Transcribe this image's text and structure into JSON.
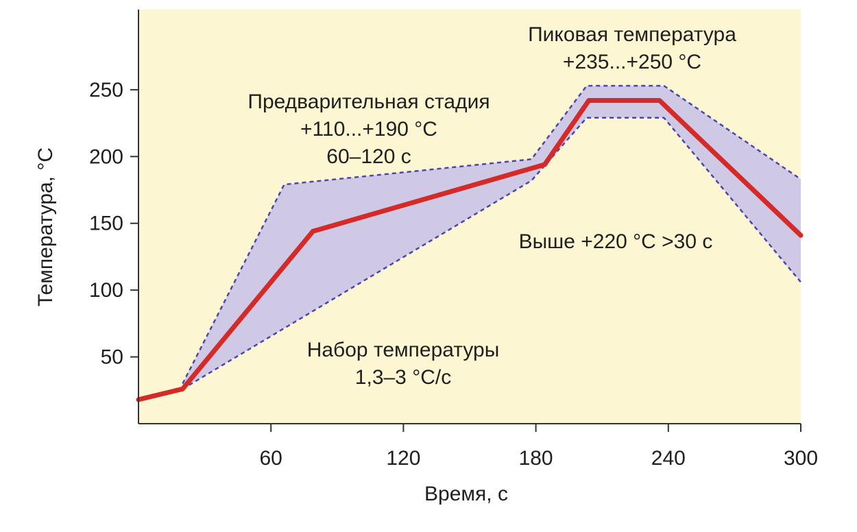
{
  "chart_data": {
    "type": "area",
    "title": "",
    "xlabel": "Время, с",
    "ylabel": "Температура, °С",
    "xlim": [
      0,
      300
    ],
    "ylim": [
      0,
      310
    ],
    "x_ticks": [
      60,
      120,
      180,
      240,
      300
    ],
    "y_ticks": [
      50,
      100,
      150,
      200,
      250
    ],
    "grid": false,
    "colors": {
      "plot_background": "#fdf6d2",
      "band_fill": "#cfc9e6",
      "band_edge": "#4a46b0",
      "profile_line": "#d42a28",
      "axis": "#333333"
    },
    "series": [
      {
        "role": "profile",
        "x": [
          0,
          20,
          79,
          184,
          204,
          236,
          300
        ],
        "y": [
          18,
          26,
          144,
          194,
          242,
          242,
          141
        ]
      },
      {
        "role": "upper_bound",
        "x": [
          20,
          66,
          178,
          203,
          238,
          300
        ],
        "y": [
          30,
          179,
          198,
          253,
          253,
          183
        ]
      },
      {
        "role": "lower_bound",
        "x": [
          20,
          178,
          203,
          238,
          300
        ],
        "y": [
          26,
          182,
          229,
          229,
          106
        ]
      }
    ],
    "annotations": [
      {
        "id": "peak",
        "lines": [
          "Пиковая температура",
          "+235...+250 °С"
        ]
      },
      {
        "id": "preheat",
        "lines": [
          "Предварительная стадия",
          "+110...+190 °С",
          "60–120 с"
        ]
      },
      {
        "id": "above",
        "lines": [
          "Выше +220 °С >30 с"
        ]
      },
      {
        "id": "ramp",
        "lines": [
          "Набор температуры",
          "1,3–3 °С/с"
        ]
      }
    ]
  }
}
